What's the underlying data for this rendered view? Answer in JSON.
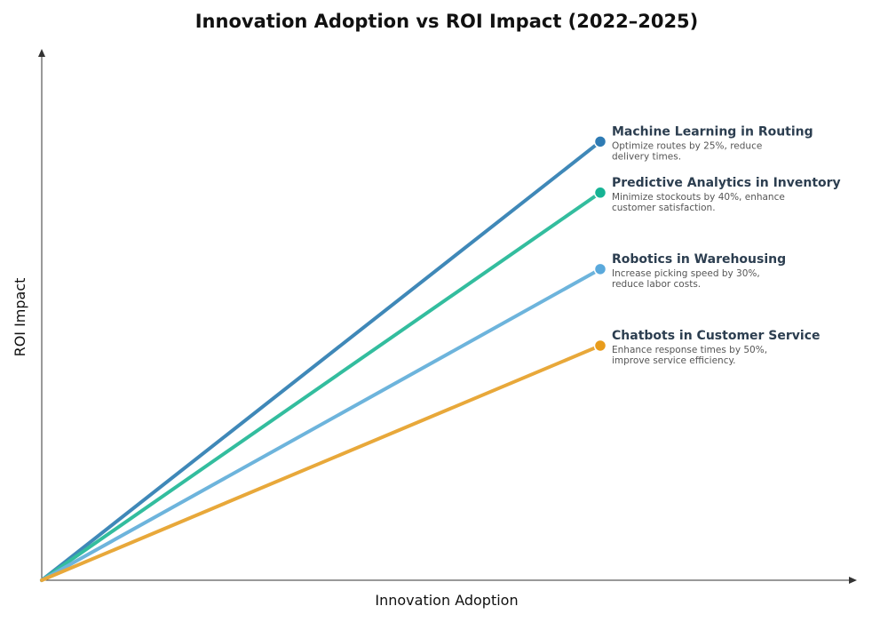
{
  "chart_data": {
    "type": "line",
    "title": "Innovation Adoption vs ROI Impact (2022–2025)",
    "xlabel": "Innovation Adoption",
    "ylabel": "ROI Impact",
    "grid": false,
    "legend": "none",
    "series": [
      {
        "name": "Machine Learning in Routing",
        "description_lines": [
          "Optimize routes by 25%, reduce",
          "delivery times."
        ],
        "color": "#2e7bb4",
        "line_color": "#3f88b8",
        "points": [
          [
            0,
            0
          ],
          [
            1,
            0.86
          ]
        ]
      },
      {
        "name": "Predictive Analytics in Inventory",
        "description_lines": [
          "Minimize stockouts by 40%, enhance",
          "customer satisfaction."
        ],
        "color": "#16b394",
        "line_color": "#33bd9e",
        "points": [
          [
            0,
            0
          ],
          [
            1,
            0.76
          ]
        ]
      },
      {
        "name": "Robotics in Warehousing",
        "description_lines": [
          "Increase picking speed by 30%,",
          "reduce labor costs."
        ],
        "color": "#5aa9dc",
        "line_color": "#6db4dc",
        "points": [
          [
            0,
            0
          ],
          [
            1,
            0.61
          ]
        ]
      },
      {
        "name": "Chatbots in Customer Service",
        "description_lines": [
          "Enhance response times by 50%,",
          "improve service efficiency."
        ],
        "color": "#e89c1c",
        "line_color": "#e8a83a",
        "points": [
          [
            0,
            0
          ],
          [
            1,
            0.46
          ]
        ]
      }
    ]
  }
}
